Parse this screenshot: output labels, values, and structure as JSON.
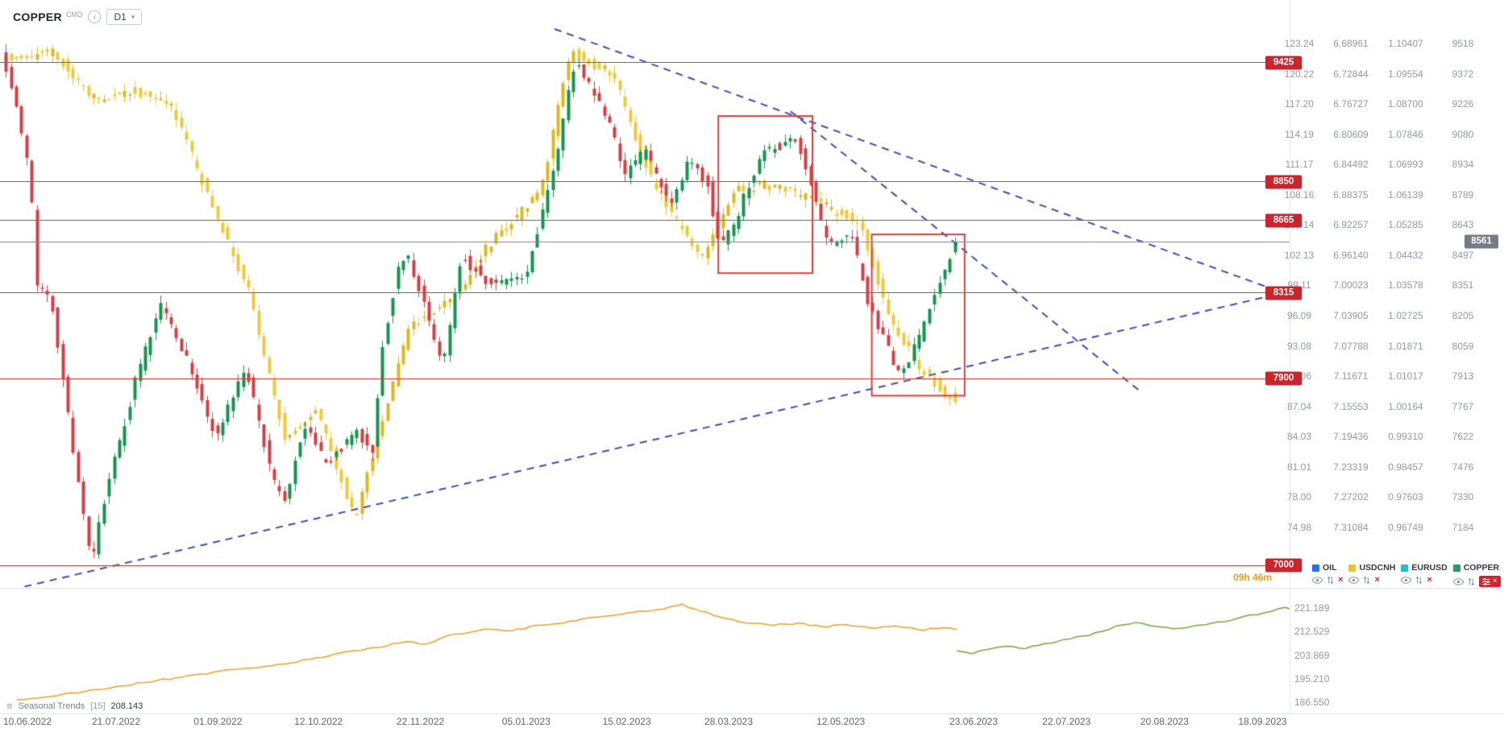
{
  "header": {
    "symbol": "COPPER",
    "market": "CMD",
    "timeframe": "D1"
  },
  "icons": {
    "info": "i",
    "chevron_down": "▾",
    "burger": "≡",
    "close": "×"
  },
  "timer": "09h 46m",
  "current_price": "8561",
  "price_scales": [
    [
      "123.24",
      "120.22",
      "117.20",
      "114.19",
      "111.17",
      "108.16",
      "105.14",
      "102.13",
      "99.11",
      "96.09",
      "93.08",
      "90.06",
      "87.04",
      "84.03",
      "81.01",
      "78.00",
      "74.98"
    ],
    [
      "6.68961",
      "6.72844",
      "6.76727",
      "6.80609",
      "6.84492",
      "6.88375",
      "6.92257",
      "6.96140",
      "7.00023",
      "7.03905",
      "7.07788",
      "7.11671",
      "7.15553",
      "7.19436",
      "7.23319",
      "7.27202",
      "7.31084"
    ],
    [
      "1.10407",
      "1.09554",
      "1.08700",
      "1.07846",
      "1.06993",
      "1.06139",
      "1.05285",
      "1.04432",
      "1.03578",
      "1.02725",
      "1.01871",
      "1.01017",
      "1.00164",
      "0.99310",
      "0.98457",
      "0.97603",
      "0.96749"
    ],
    [
      "9518",
      "9372",
      "9226",
      "9080",
      "8934",
      "8789",
      "8643",
      "8497",
      "8351",
      "8205",
      "8059",
      "7913",
      "7767",
      "7622",
      "7476",
      "7330",
      "7184"
    ]
  ],
  "dates": [
    {
      "label": "10.06.2022",
      "f": 0.011
    },
    {
      "label": "21.07.2022",
      "f": 0.09
    },
    {
      "label": "01.09.2022",
      "f": 0.169
    },
    {
      "label": "12.10.2022",
      "f": 0.247
    },
    {
      "label": "22.11.2022",
      "f": 0.326
    },
    {
      "label": "05.01.2023",
      "f": 0.408
    },
    {
      "label": "15.02.2023",
      "f": 0.486
    },
    {
      "label": "28.03.2023",
      "f": 0.565
    },
    {
      "label": "12.05.2023",
      "f": 0.652
    },
    {
      "label": "23.06.2023",
      "f": 0.755
    },
    {
      "label": "22.07.2023",
      "f": 0.827
    },
    {
      "label": "20.08.2023",
      "f": 0.903
    },
    {
      "label": "18.09.2023",
      "f": 0.979
    }
  ],
  "legend": {
    "items": [
      {
        "label": "OIL",
        "color": "#2573f2"
      },
      {
        "label": "USDCNH",
        "color": "#f0c514"
      },
      {
        "label": "EURUSD",
        "color": "#24bdd4"
      },
      {
        "label": "COPPER",
        "color": "#1ca45f"
      }
    ]
  },
  "indicator": {
    "name": "Seasonal Trends",
    "param": "[15]",
    "value": "208.143",
    "axis_labels": [
      "221.189",
      "212.529",
      "203.869",
      "195.210",
      "186.550"
    ]
  },
  "chart_data": {
    "type": "candlestick",
    "symbol": "COPPER",
    "timeframe": "D1",
    "x_start": "10.06.2022",
    "x_end": "18.09.2023",
    "copper_scale_rows": [
      9518,
      9372,
      9226,
      9080,
      8934,
      8789,
      8643,
      8497,
      8351,
      8205,
      8059,
      7913,
      7767,
      7622,
      7476,
      7330,
      7184
    ],
    "usdcnh_scale_rows": [
      6.68961,
      6.72844,
      6.76727,
      6.80609,
      6.84492,
      6.88375,
      6.92257,
      6.9614,
      7.00023,
      7.03905,
      7.07788,
      7.11671,
      7.15553,
      7.19436,
      7.23319,
      7.27202,
      7.31084
    ],
    "levels": [
      9425,
      8850,
      8665,
      8315,
      7900,
      7000
    ],
    "current_price": 8561,
    "colors": {
      "level_line": "#e0433e",
      "level_badge": "#c9252d",
      "current_line": "#8b9099",
      "current_badge": "#767b85",
      "trendline": "#3b4db8",
      "rectangle": "#e03c3c"
    },
    "series": [
      {
        "name": "USDCNH",
        "scale": "usdcnh",
        "up": "#eec93c",
        "down": "#e0b51e",
        "n": 185,
        "vol": 0.014,
        "seed": 99,
        "path": [
          [
            0,
            6.71
          ],
          [
            0.054,
            6.7
          ],
          [
            0.095,
            6.76
          ],
          [
            0.141,
            6.75
          ],
          [
            0.179,
            6.77
          ],
          [
            0.225,
            6.91
          ],
          [
            0.26,
            7.01
          ],
          [
            0.298,
            7.2
          ],
          [
            0.33,
            7.16
          ],
          [
            0.371,
            7.3
          ],
          [
            0.398,
            7.18
          ],
          [
            0.428,
            7.05
          ],
          [
            0.474,
            7.02
          ],
          [
            0.509,
            6.95
          ],
          [
            0.566,
            6.88
          ],
          [
            0.596,
            6.7
          ],
          [
            0.642,
            6.73
          ],
          [
            0.683,
            6.87
          ],
          [
            0.734,
            6.97
          ],
          [
            0.767,
            6.88
          ],
          [
            0.797,
            6.87
          ],
          [
            0.851,
            6.89
          ],
          [
            0.9,
            6.92
          ],
          [
            0.93,
            7.04
          ],
          [
            0.965,
            7.11
          ],
          [
            1,
            7.15
          ]
        ]
      },
      {
        "name": "COPPER",
        "scale": "copper",
        "up": "#17934f",
        "down": "#d23f44",
        "n": 185,
        "vol": 55,
        "seed": 7,
        "path": [
          [
            0,
            9500
          ],
          [
            0.014,
            9250
          ],
          [
            0.03,
            8900
          ],
          [
            0.038,
            8350
          ],
          [
            0.054,
            8250
          ],
          [
            0.068,
            7800
          ],
          [
            0.089,
            7150
          ],
          [
            0.095,
            6990
          ],
          [
            0.108,
            7320
          ],
          [
            0.141,
            7890
          ],
          [
            0.168,
            8260
          ],
          [
            0.19,
            8050
          ],
          [
            0.225,
            7620
          ],
          [
            0.257,
            7950
          ],
          [
            0.285,
            7400
          ],
          [
            0.298,
            7300
          ],
          [
            0.317,
            7680
          ],
          [
            0.341,
            7480
          ],
          [
            0.371,
            7650
          ],
          [
            0.39,
            7560
          ],
          [
            0.398,
            8010
          ],
          [
            0.417,
            8460
          ],
          [
            0.428,
            8480
          ],
          [
            0.463,
            7960
          ],
          [
            0.482,
            8490
          ],
          [
            0.509,
            8370
          ],
          [
            0.55,
            8380
          ],
          [
            0.585,
            9050
          ],
          [
            0.602,
            9440
          ],
          [
            0.615,
            9330
          ],
          [
            0.64,
            9120
          ],
          [
            0.653,
            8870
          ],
          [
            0.675,
            9010
          ],
          [
            0.702,
            8720
          ],
          [
            0.721,
            8950
          ],
          [
            0.74,
            8840
          ],
          [
            0.753,
            8540
          ],
          [
            0.767,
            8630
          ],
          [
            0.797,
            9000
          ],
          [
            0.835,
            9050
          ],
          [
            0.865,
            8560
          ],
          [
            0.892,
            8570
          ],
          [
            0.911,
            8230
          ],
          [
            0.943,
            7900
          ],
          [
            0.962,
            8100
          ],
          [
            0.984,
            8370
          ],
          [
            1,
            8561
          ]
        ]
      }
    ],
    "trendlines": [
      {
        "color": "#3b4db8",
        "width": 2,
        "dash": [
          9,
          7
        ],
        "points": [
          [
            0.43,
            9588
          ],
          [
            0.995,
            8315
          ]
        ]
      },
      {
        "color": "#3b4db8",
        "width": 2,
        "dash": [
          9,
          7
        ],
        "points": [
          [
            0.613,
            9191
          ],
          [
            0.883,
            7846
          ]
        ]
      },
      {
        "color": "#3b4db8",
        "width": 2,
        "dash": [
          9,
          7
        ],
        "points": [
          [
            0.019,
            6898
          ],
          [
            0.995,
            8315
          ]
        ]
      }
    ],
    "rectangles": [
      {
        "color": "#e03c3c",
        "x1": 0.557,
        "x2": 0.63,
        "top": 9168,
        "bottom": 8410
      },
      {
        "color": "#e03c3c",
        "x1": 0.676,
        "x2": 0.748,
        "top": 8597,
        "bottom": 7819
      }
    ],
    "indicator_axis": [
      221.189,
      212.529,
      203.869,
      195.21,
      186.55
    ],
    "indicator_series": [
      {
        "name": "seasonal-history",
        "color": "#f59b22",
        "points": [
          [
            0.013,
            187.4
          ],
          [
            0.045,
            189
          ],
          [
            0.075,
            191.2
          ],
          [
            0.112,
            193.8
          ],
          [
            0.15,
            196.6
          ],
          [
            0.187,
            198.8
          ],
          [
            0.225,
            200.9
          ],
          [
            0.255,
            203.6
          ],
          [
            0.285,
            206.3
          ],
          [
            0.315,
            208.8
          ],
          [
            0.33,
            207.9
          ],
          [
            0.352,
            211.6
          ],
          [
            0.375,
            213.4
          ],
          [
            0.397,
            212.8
          ],
          [
            0.42,
            214.9
          ],
          [
            0.442,
            216.4
          ],
          [
            0.465,
            217.9
          ],
          [
            0.487,
            219.4
          ],
          [
            0.51,
            220.6
          ],
          [
            0.529,
            222.6
          ],
          [
            0.544,
            219.9
          ],
          [
            0.562,
            217.4
          ],
          [
            0.581,
            215.6
          ],
          [
            0.6,
            214.8
          ],
          [
            0.619,
            215.7
          ],
          [
            0.637,
            214.4
          ],
          [
            0.656,
            215.1
          ],
          [
            0.675,
            213.8
          ],
          [
            0.694,
            214.6
          ],
          [
            0.712,
            213.2
          ],
          [
            0.731,
            213.9
          ],
          [
            0.742,
            213.3
          ]
        ]
      },
      {
        "name": "seasonal-projection",
        "color": "#6fa834",
        "points": [
          [
            0.742,
            205.4
          ],
          [
            0.754,
            204.4
          ],
          [
            0.765,
            205.9
          ],
          [
            0.78,
            207.1
          ],
          [
            0.795,
            206.2
          ],
          [
            0.81,
            208.1
          ],
          [
            0.825,
            209.6
          ],
          [
            0.84,
            210.9
          ],
          [
            0.855,
            212.6
          ],
          [
            0.87,
            214.9
          ],
          [
            0.881,
            215.9
          ],
          [
            0.892,
            214.7
          ],
          [
            0.904,
            214.1
          ],
          [
            0.915,
            213.7
          ],
          [
            0.93,
            214.9
          ],
          [
            0.945,
            216.1
          ],
          [
            0.96,
            217.4
          ],
          [
            0.975,
            218.7
          ],
          [
            0.986,
            219.9
          ],
          [
            0.997,
            221.4
          ],
          [
            1,
            220.8
          ]
        ]
      }
    ]
  }
}
